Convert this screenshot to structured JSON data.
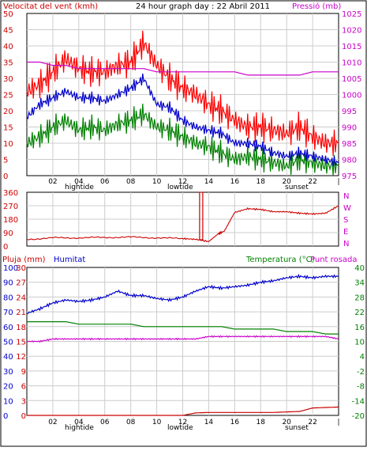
{
  "header": {
    "wind_label": "Velocitat del vent (kmh)",
    "title": "24 hour graph day : 22 Abril 2011",
    "pressure_label": "Pressió (mb)"
  },
  "labels": {
    "rain": "Pluja (mm)",
    "humidity": "Humitat",
    "temperature": "Temperatura (°C)",
    "dewpoint": "Punt rosada",
    "hightide": "hightide",
    "lowtide": "lowtide",
    "sunset": "sunset"
  },
  "colors": {
    "gust": "#ff0000",
    "wind": "#0000cc",
    "wind_min": "#008000",
    "pressure": "#cc00cc",
    "direction": "#cc0000",
    "humidity": "#0000cc",
    "temperature": "#008000",
    "dewpoint": "#cc00cc",
    "rain": "#cc0000",
    "grid": "#cccccc",
    "axis_left_label": "#cc0000",
    "axis_right_label": "#cc00cc"
  },
  "chart_data": [
    {
      "type": "line",
      "name": "wind_pressure",
      "x_ticks": [
        "02",
        "04",
        "06",
        "08",
        "10",
        "12",
        "14",
        "16",
        "18",
        "20",
        "22",
        "|"
      ],
      "ylim_left": [
        0,
        50
      ],
      "y_ticks_left": [
        0,
        5,
        10,
        15,
        20,
        25,
        30,
        35,
        40,
        45,
        50
      ],
      "ylim_right": [
        975,
        1025
      ],
      "y_ticks_right": [
        975,
        980,
        985,
        990,
        995,
        1000,
        1005,
        1010,
        1015,
        1020,
        1025
      ],
      "x_hours": [
        0,
        1,
        2,
        3,
        4,
        5,
        6,
        7,
        8,
        9,
        10,
        11,
        12,
        13,
        14,
        15,
        16,
        17,
        18,
        19,
        20,
        21,
        22,
        23,
        24
      ],
      "gust": [
        26,
        28,
        32,
        36,
        33,
        32,
        32,
        34,
        35,
        41,
        34,
        30,
        27,
        25,
        22,
        20,
        17,
        15,
        15,
        14,
        13,
        15,
        12,
        10,
        10
      ],
      "wind": [
        18,
        22,
        24,
        26,
        24,
        24,
        23,
        25,
        27,
        30,
        22,
        21,
        17,
        15,
        14,
        13,
        10,
        10,
        9,
        7,
        6,
        7,
        6,
        5,
        4
      ],
      "wind_min": [
        10,
        12,
        15,
        17,
        14,
        15,
        14,
        16,
        17,
        19,
        15,
        14,
        12,
        10,
        9,
        7,
        5,
        6,
        5,
        4,
        3,
        5,
        4,
        3,
        3
      ],
      "pressure": [
        1010,
        1010,
        1009,
        1009,
        1008,
        1008,
        1008,
        1008,
        1008,
        1008,
        1007,
        1007,
        1007,
        1007,
        1007,
        1007,
        1007,
        1006,
        1006,
        1006,
        1006,
        1006,
        1007,
        1007,
        1007
      ]
    },
    {
      "type": "line",
      "name": "wind_direction",
      "ylim": [
        0,
        360
      ],
      "y_ticks": [
        0,
        90,
        180,
        270,
        360
      ],
      "compass": [
        "N",
        "W",
        "S",
        "E",
        "N"
      ],
      "x_hours": [
        0,
        2,
        4,
        6,
        8,
        10,
        12,
        13,
        14,
        14.7,
        15.2,
        16,
        17,
        18,
        19,
        20,
        21,
        22,
        23,
        24
      ],
      "direction": [
        45,
        55,
        55,
        58,
        60,
        55,
        50,
        45,
        30,
        80,
        100,
        225,
        250,
        245,
        230,
        230,
        220,
        215,
        220,
        270
      ]
    },
    {
      "type": "line",
      "name": "temp_humidity_rain",
      "x_ticks": [
        "02",
        "04",
        "06",
        "08",
        "10",
        "12",
        "14",
        "16",
        "18",
        "20",
        "22",
        "|"
      ],
      "humidity_ticks": [
        0,
        10,
        20,
        30,
        40,
        50,
        60,
        70,
        80,
        90,
        100
      ],
      "rain_ticks": [
        0,
        3,
        6,
        9,
        12,
        15,
        18,
        21,
        24,
        27,
        30
      ],
      "temp_ticks": [
        -20,
        -14,
        -8,
        -2,
        4,
        10,
        16,
        22,
        28,
        34,
        40
      ],
      "ylim_humidity": [
        0,
        100
      ],
      "ylim_rain": [
        0,
        30
      ],
      "ylim_temp": [
        -20,
        40
      ],
      "x_hours": [
        0,
        1,
        2,
        3,
        4,
        5,
        6,
        7,
        8,
        9,
        10,
        11,
        12,
        13,
        14,
        15,
        16,
        17,
        18,
        19,
        20,
        21,
        22,
        23,
        24
      ],
      "humidity": [
        69,
        72,
        76,
        78,
        77,
        78,
        80,
        84,
        81,
        81,
        79,
        78,
        80,
        84,
        87,
        86,
        87,
        88,
        90,
        91,
        93,
        94,
        93,
        94,
        94
      ],
      "temperature": [
        18,
        18,
        18,
        18,
        17,
        17,
        17,
        17,
        17,
        16,
        16,
        16,
        16,
        16,
        16,
        16,
        15,
        15,
        15,
        15,
        14,
        14,
        14,
        13,
        13
      ],
      "dewpoint": [
        10,
        10,
        11,
        11,
        11,
        11,
        11,
        11,
        11,
        11,
        11,
        11,
        11,
        11,
        12,
        12,
        12,
        12,
        12,
        12,
        12,
        12,
        12,
        12,
        11
      ],
      "rain": [
        0,
        0,
        0,
        0,
        0,
        0,
        0,
        0,
        0,
        0,
        0,
        0,
        0,
        0.5,
        0.6,
        0.6,
        0.6,
        0.6,
        0.6,
        0.6,
        0.7,
        0.8,
        1.5,
        1.6,
        1.7
      ]
    }
  ]
}
